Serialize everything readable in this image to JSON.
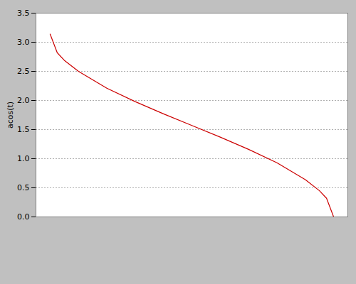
{
  "chart_data": {
    "type": "line",
    "x": [
      -1.0,
      -0.95,
      -0.9,
      -0.8,
      -0.6,
      -0.4,
      -0.2,
      0.0,
      0.2,
      0.4,
      0.6,
      0.8,
      0.9,
      0.95,
      1.0
    ],
    "series": [
      {
        "name": "acos(t)",
        "color": "#cc0000",
        "values": [
          3.14,
          2.82,
          2.69,
          2.5,
          2.21,
          1.98,
          1.77,
          1.57,
          1.37,
          1.16,
          0.93,
          0.64,
          0.45,
          0.32,
          0.0
        ]
      }
    ],
    "ylabel": "acos(t)",
    "xlim": [
      -1.1,
      1.1
    ],
    "ylim": [
      0,
      3.5
    ],
    "yticks": [
      {
        "value": 0,
        "label": "0.0"
      },
      0.5,
      {
        "value": 1,
        "label": "1.0"
      },
      1.5,
      {
        "value": 2,
        "label": "2.0"
      },
      2.5,
      {
        "value": 3,
        "label": "3.0"
      },
      3.5
    ],
    "grid": true,
    "tick_labels": "y"
  }
}
